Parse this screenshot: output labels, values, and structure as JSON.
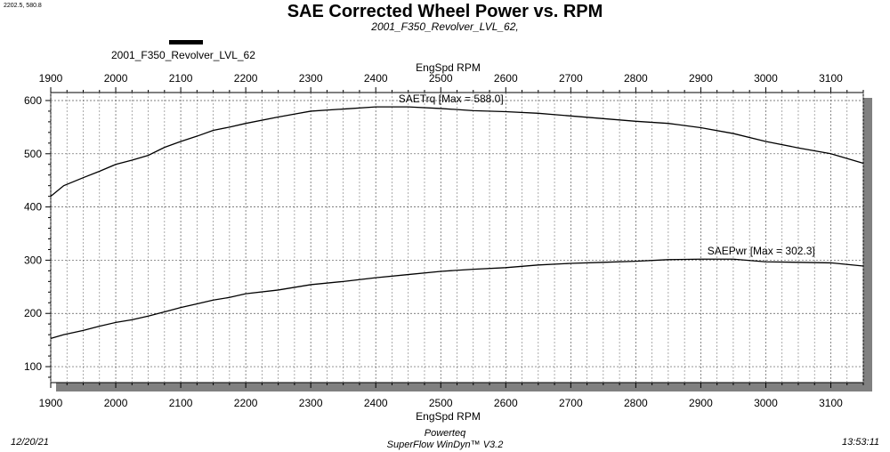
{
  "cursor_readout": "2202.5, 580.8",
  "legend": {
    "label": "2001_F350_Revolver_LVL_62",
    "swatch_color": "#000000"
  },
  "footer": {
    "date": "12/20/21",
    "company": "Powerteq",
    "software": "SuperFlow WinDyn™ V3.2",
    "time": "13:53:11"
  },
  "chart_data": {
    "type": "line",
    "title": "SAE Corrected Wheel Power vs. RPM",
    "subtitle": "2001_F350_Revolver_LVL_62,",
    "xlabel": "EngSpd RPM",
    "xlim": [
      1900,
      3150
    ],
    "ylim": [
      70,
      615
    ],
    "x_ticks": [
      1900,
      2000,
      2100,
      2200,
      2300,
      2400,
      2500,
      2600,
      2700,
      2800,
      2900,
      3000,
      3100
    ],
    "y_ticks": [
      100,
      200,
      300,
      400,
      500,
      600
    ],
    "grid": true,
    "series": [
      {
        "name": "SAETrq",
        "annotation": "SAETrq [Max = 588.0]",
        "label_x": 2435,
        "x": [
          1900,
          1920,
          1950,
          1975,
          2000,
          2025,
          2050,
          2075,
          2100,
          2125,
          2150,
          2175,
          2200,
          2250,
          2300,
          2350,
          2400,
          2450,
          2500,
          2550,
          2600,
          2650,
          2700,
          2750,
          2800,
          2850,
          2900,
          2950,
          3000,
          3050,
          3100,
          3150
        ],
        "values": [
          420,
          440,
          455,
          467,
          480,
          488,
          497,
          512,
          523,
          533,
          544,
          550,
          557,
          569,
          580,
          584,
          588,
          588,
          585,
          581,
          579,
          576,
          571,
          566,
          561,
          557,
          549,
          538,
          523,
          511,
          500,
          482
        ]
      },
      {
        "name": "SAEPwr",
        "annotation": "SAEPwr [Max = 302.3]",
        "label_x": 2910,
        "x": [
          1900,
          1920,
          1950,
          1975,
          2000,
          2025,
          2050,
          2075,
          2100,
          2125,
          2150,
          2175,
          2200,
          2250,
          2300,
          2350,
          2400,
          2450,
          2500,
          2550,
          2600,
          2650,
          2700,
          2750,
          2800,
          2850,
          2900,
          2950,
          3000,
          3050,
          3100,
          3150
        ],
        "values": [
          153,
          160,
          168,
          176,
          183,
          188,
          195,
          203,
          211,
          218,
          225,
          230,
          237,
          244,
          254,
          260,
          267,
          273,
          279,
          283,
          286,
          291,
          294,
          296,
          298,
          301,
          302,
          302,
          297,
          296,
          295,
          289
        ]
      }
    ]
  }
}
